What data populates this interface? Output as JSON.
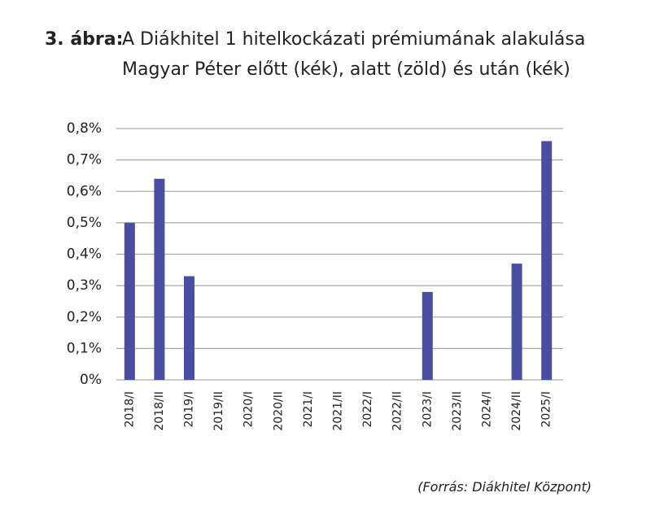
{
  "chart_data": {
    "type": "bar",
    "title_label": "3. ábra:",
    "title": [
      "A Diákhitel 1 hitelkockázati prémiumának alakulása",
      "Magyar Péter előtt (kék), alatt (zöld) és után (kék)"
    ],
    "source": "(Forrás: Diákhitel Központ)",
    "categories": [
      "2018/I",
      "2018/II",
      "2019/I",
      "2019/II",
      "2020/I",
      "2020/II",
      "2021/I",
      "2021/II",
      "2022/I",
      "2022/II",
      "2023/I",
      "2023/II",
      "2024/I",
      "2024/II",
      "2025/I"
    ],
    "values": [
      0.5,
      0.64,
      0.33,
      0,
      0,
      0,
      0,
      0,
      0,
      0,
      0.28,
      0,
      0,
      0.37,
      0.76
    ],
    "color": "#4a4ea3",
    "ylim": [
      0,
      0.8
    ],
    "yticks": [
      {
        "value": 0,
        "label": "0%"
      },
      {
        "value": 0.1,
        "label": "0,1%"
      },
      {
        "value": 0.2,
        "label": "0,2%"
      },
      {
        "value": 0.3,
        "label": "0,3%"
      },
      {
        "value": 0.4,
        "label": "0,4%"
      },
      {
        "value": 0.5,
        "label": "0,5%"
      },
      {
        "value": 0.6,
        "label": "0,6%"
      },
      {
        "value": 0.7,
        "label": "0,7%"
      },
      {
        "value": 0.8,
        "label": "0,8%"
      }
    ],
    "grid": true
  }
}
